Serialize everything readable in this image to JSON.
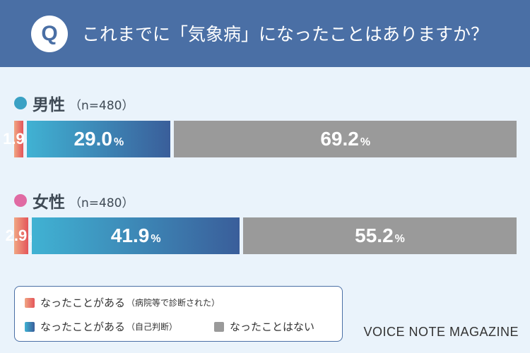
{
  "header": {
    "badge": "Q",
    "question": "これまでに「気象病」になったことはありますか？"
  },
  "colors": {
    "header_bg": "#4a6fa5",
    "male_dot": "#3aa1c4",
    "female_dot": "#e06aa3",
    "diagnosed": "#e4555a",
    "self_judged": "#3a7fb8",
    "never": "#9a9a9a"
  },
  "groups": [
    {
      "name": "男性",
      "n_label": "（n=480）",
      "diagnosed": {
        "num": "1.9",
        "unit": "%"
      },
      "self": {
        "num": "29.0",
        "unit": "%"
      },
      "never": {
        "num": "69.2",
        "unit": "%"
      }
    },
    {
      "name": "女性",
      "n_label": "（n=480）",
      "diagnosed": {
        "num": "2.9",
        "unit": "%"
      },
      "self": {
        "num": "41.9",
        "unit": "%"
      },
      "never": {
        "num": "55.2",
        "unit": "%"
      }
    }
  ],
  "legend": {
    "diagnosed": {
      "label": "なったことがある",
      "sub": "（病院等で診断された）"
    },
    "self": {
      "label": "なったことがある",
      "sub": "（自己判断）"
    },
    "never": {
      "label": "なったことはない"
    }
  },
  "brand": "VOICE NOTE MAGAZINE",
  "chart_data": {
    "type": "bar",
    "orientation": "horizontal-stacked-100",
    "categories": [
      "男性",
      "女性"
    ],
    "series": [
      {
        "name": "なったことがある（病院等で診断された）",
        "values": [
          1.9,
          2.9
        ]
      },
      {
        "name": "なったことがある（自己判断）",
        "values": [
          29.0,
          41.9
        ]
      },
      {
        "name": "なったことはない",
        "values": [
          69.2,
          55.2
        ]
      }
    ],
    "xlim": [
      0,
      100
    ],
    "grid": false,
    "legend_position": "bottom-left"
  }
}
